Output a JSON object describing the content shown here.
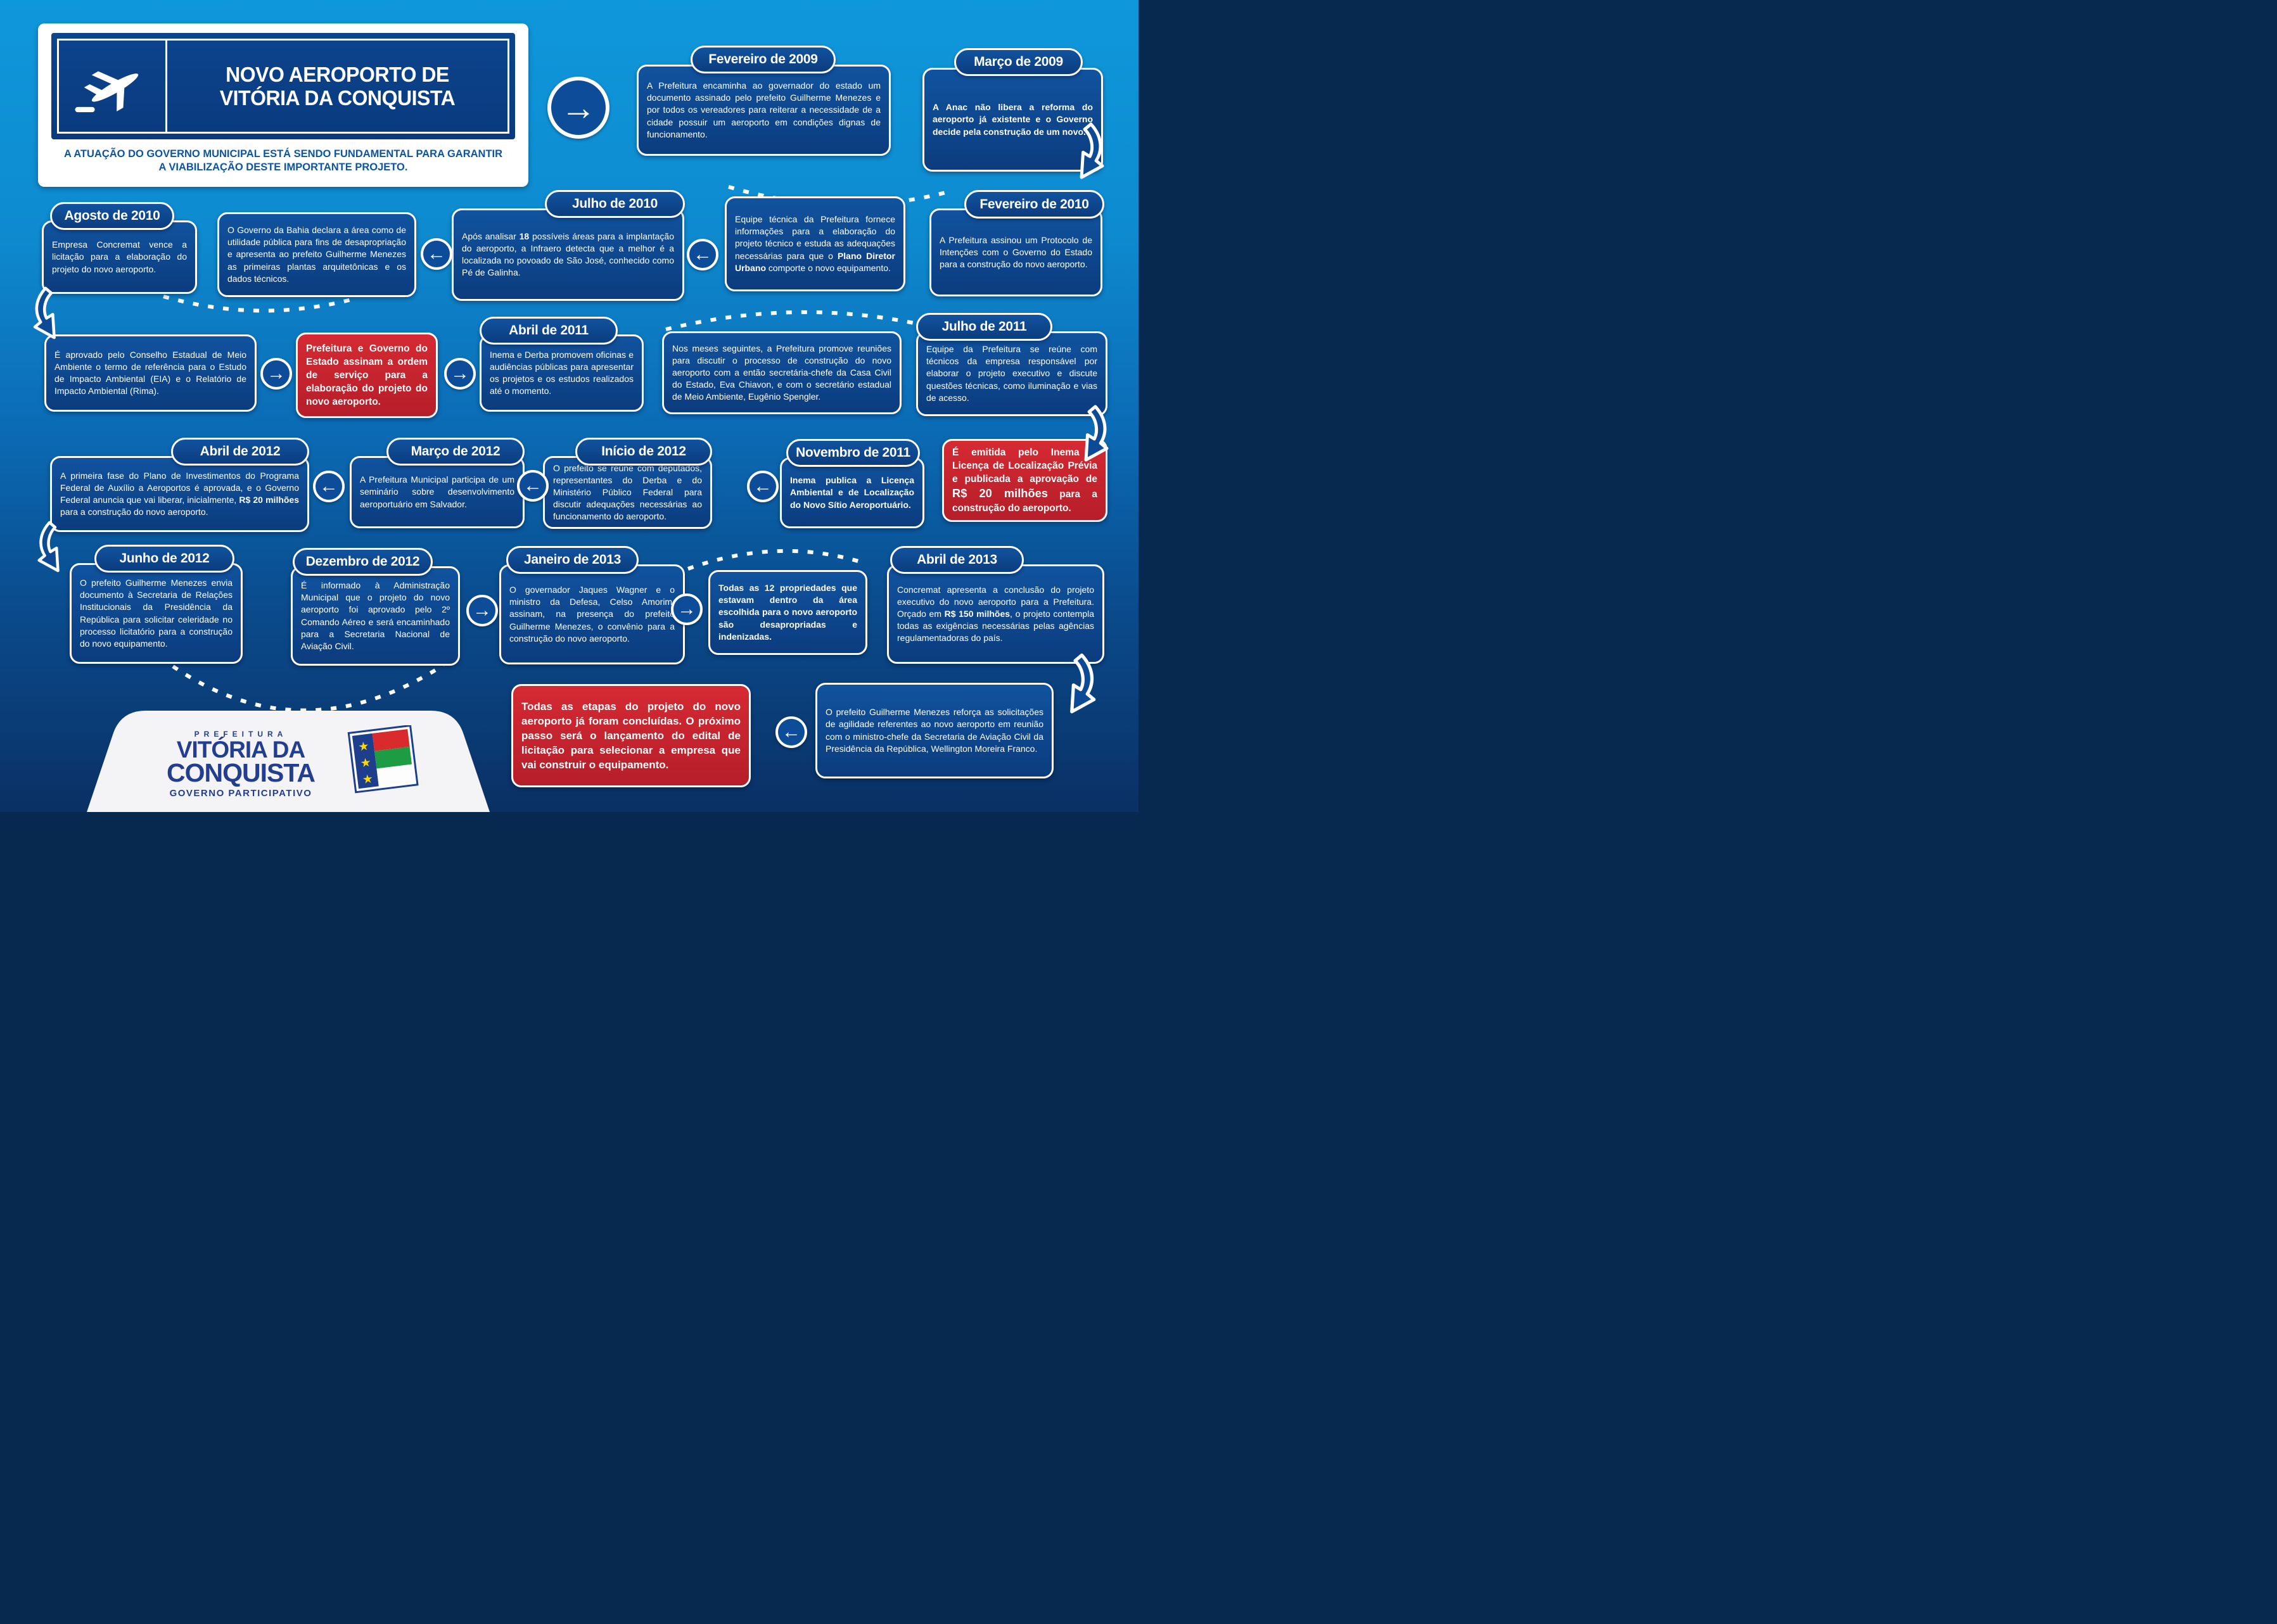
{
  "header": {
    "title_line1": "NOVO AEROPORTO DE",
    "title_line2": "VITÓRIA DA CONQUISTA",
    "subtitle": "A ATUAÇÃO DO GOVERNO MUNICIPAL ESTÁ SENDO FUNDAMENTAL PARA GARANTIR A VIABILIZAÇÃO DESTE IMPORTANTE PROJETO."
  },
  "icons": {
    "arrow_right": "→",
    "arrow_left": "←",
    "plane": "plane-taking-off",
    "flag": "municipal-flag",
    "star": "★"
  },
  "colors": {
    "background_top": "#0f97db",
    "background_bottom": "#0a3064",
    "card_blue": "#0e4a94",
    "card_red": "#cf242c",
    "border_white": "#ffffff",
    "logo_blue": "#233e8f",
    "flag_yellow": "#ffd800",
    "flag_red": "#d92b2b",
    "flag_green": "#1e9c44"
  },
  "events": [
    {
      "id": "fevereiro-2009",
      "date": "Fevereiro de 2009",
      "variant": "blue",
      "text": "A Prefeitura encaminha ao governador do estado um documento assinado pelo prefeito Guilherme Menezes e por todos os vereadores para reiterar a necessidade de a cidade possuir um aeroporto em condições dignas de funcionamento."
    },
    {
      "id": "marco-2009",
      "date": "Março de 2009",
      "variant": "blue",
      "text": "A Anac não libera a reforma do aeroporto já existente e o Governo decide pela construção de um novo."
    },
    {
      "id": "fevereiro-2010",
      "date": "Fevereiro de 2010",
      "variant": "blue",
      "text": "A Prefeitura assinou um Protocolo de Intenções com o Governo do Estado para a construção do novo aeroporto."
    },
    {
      "id": "equipe-tecnica",
      "date": null,
      "variant": "blue",
      "text": "Equipe técnica da Prefeitura fornece informações para a elaboração do projeto técnico e estuda as adequações necessárias para que o **Plano Diretor Urbano** comporte o novo equipamento."
    },
    {
      "id": "julho-2010",
      "date": "Julho de 2010",
      "variant": "blue",
      "text": "Após analisar **18** possíveis áreas para a implantação do aeroporto, a Infraero detecta que a melhor é a localizada no povoado de São José, conhecido como Pé de Galinha."
    },
    {
      "id": "governo-bahia",
      "date": null,
      "variant": "blue",
      "text": "O Governo da Bahia declara a área como de utilidade pública para fins de desapropriação e apresenta ao prefeito Guilherme Menezes as primeiras plantas arquitetônicas e os dados técnicos."
    },
    {
      "id": "agosto-2010",
      "date": "Agosto de 2010",
      "variant": "blue",
      "text": "Empresa Concremat vence a licitação para a elaboração do projeto do novo aeroporto."
    },
    {
      "id": "conselho-meio-ambiente",
      "date": null,
      "variant": "blue",
      "text": "É aprovado pelo Conselho Estadual de Meio Ambiente o termo de referência para o Estudo de Impacto Ambiental (EIA) e o Relatório de Impacto Ambiental (Rima)."
    },
    {
      "id": "ordem-de-servico",
      "date": null,
      "variant": "red",
      "text": "Prefeitura e Governo do Estado assinam a ordem de serviço para a elaboração do projeto do novo aeroporto."
    },
    {
      "id": "abril-2011",
      "date": "Abril de 2011",
      "variant": "blue",
      "text": "Inema e Derba promovem oficinas e audiências públicas para apresentar os projetos e os estudos realizados até o momento."
    },
    {
      "id": "reunioes-casa-civil",
      "date": null,
      "variant": "blue",
      "text": "Nos meses seguintes, a Prefeitura promove reuniões para discutir o processo de construção do novo aeroporto com a então secretária-chefe da Casa Civil do Estado, Eva Chiavon, e com o secretário estadual de Meio Ambiente, Eugênio Spengler."
    },
    {
      "id": "julho-2011",
      "date": "Julho de 2011",
      "variant": "blue",
      "text": "Equipe da Prefeitura se reúne com técnicos da empresa responsável por elaborar o projeto executivo e discute questões técnicas, como iluminação e vias de acesso."
    },
    {
      "id": "licenca-localizacao-previa",
      "date": null,
      "variant": "red",
      "text": "É emitida pelo Inema a Licença de Localização Prévia e publicada a aprovação de **R$ 20 milhões** para a construção do aeroporto."
    },
    {
      "id": "novembro-2011",
      "date": "Novembro de 2011",
      "variant": "blue",
      "text": "Inema publica a Licença Ambiental e de Localização do Novo Sítio Aeroportuário."
    },
    {
      "id": "inicio-2012",
      "date": "Início de 2012",
      "variant": "blue",
      "text": "O prefeito se reúne com deputados, representantes do Derba e do Ministério Público Federal para discutir adequações necessárias ao funcionamento do aeroporto."
    },
    {
      "id": "marco-2012",
      "date": "Março de 2012",
      "variant": "blue",
      "text": "A Prefeitura Municipal participa de um seminário sobre desenvolvimento aeroportuário em Salvador."
    },
    {
      "id": "abril-2012",
      "date": "Abril de 2012",
      "variant": "blue",
      "text": "A primeira fase do Plano de Investimentos do Programa Federal de Auxílio a Aeroportos é aprovada, e o Governo Federal anuncia que vai liberar, inicialmente, **R$ 20 milhões** para a construção do novo aeroporto."
    },
    {
      "id": "junho-2012",
      "date": "Junho de 2012",
      "variant": "blue",
      "text": "O prefeito Guilherme Menezes envia documento à Secretaria de Relações Institucionais da Presidência da República para solicitar celeridade no processo licitatório para a construção do novo equipamento."
    },
    {
      "id": "dezembro-2012",
      "date": "Dezembro de 2012",
      "variant": "blue",
      "text": "É informado à Administração Municipal que o projeto do novo aeroporto foi aprovado pelo 2º Comando Aéreo e será encaminhado para a Secretaria Nacional de Aviação Civil."
    },
    {
      "id": "janeiro-2013",
      "date": "Janeiro de 2013",
      "variant": "blue",
      "text": "O governador Jaques Wagner e o ministro da Defesa, Celso Amorim, assinam, na presença do prefeito Guilherme Menezes, o convênio para a construção do novo aeroporto."
    },
    {
      "id": "propriedades-desapropriadas",
      "date": null,
      "variant": "blue",
      "text": "Todas as 12 propriedades que estavam dentro da área escolhida para o novo aeroporto são desapropriadas e indenizadas."
    },
    {
      "id": "abril-2013",
      "date": "Abril de 2013",
      "variant": "blue",
      "text": "Concremat apresenta a conclusão do projeto executivo do novo aeroporto para a Prefeitura. Orçado em **R$ 150 milhões**, o projeto contempla todas as exigências necessárias pelas agências regulamentadoras do país."
    },
    {
      "id": "etapas-concluidas",
      "date": null,
      "variant": "red",
      "text": "Todas as etapas do projeto do novo aeroporto já foram concluídas. O próximo passo será o lançamento do edital de licitação para selecionar a empresa que vai construir o equipamento."
    },
    {
      "id": "reuniao-aviacao-civil",
      "date": null,
      "variant": "blue",
      "text": "O prefeito Guilherme Menezes reforça as solicitações de agilidade referentes ao novo aeroporto em reunião com o ministro-chefe da Secretaria de Aviação Civil da Presidência da República, Wellington Moreira Franco."
    }
  ],
  "footer": {
    "prefeitura": "PREFEITURA",
    "name_line1": "VITÓRIA DA",
    "name_line2": "CONQUISTA",
    "tagline": "GOVERNO PARTICIPATIVO"
  }
}
